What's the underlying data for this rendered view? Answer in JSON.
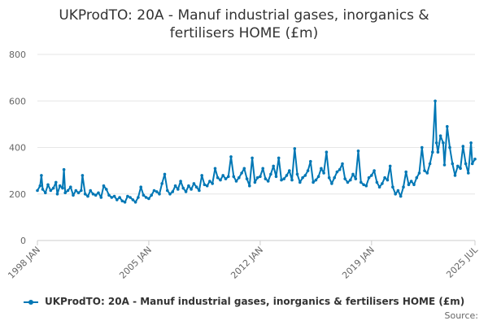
{
  "title_line1": "UKProdTO: 20A - Manuf industrial gases, inorganics &",
  "title_line2": "fertilisers HOME (£m)",
  "source_label": "Source:",
  "chart_data": {
    "type": "line",
    "xlim": [
      "1998-01",
      "2025-07"
    ],
    "ylim": [
      0,
      800
    ],
    "y_ticks": [
      0,
      200,
      400,
      600,
      800
    ],
    "x_ticks": [
      "1998-01",
      "2005-01",
      "2012-01",
      "2019-01",
      "2025-07"
    ],
    "x_tick_labels": [
      "1998 JAN",
      "2005 JAN",
      "2012 JAN",
      "2019 JAN",
      "2025 JUL"
    ],
    "grid": "horizontal",
    "legend_position": "bottom",
    "series_color": "#0077b5",
    "series": [
      {
        "name": "UKProdTO: 20A - Manuf industrial gases, inorganics & fertilisers HOME (£m)",
        "points": [
          [
            "1998-01",
            215
          ],
          [
            "1998-03",
            235
          ],
          [
            "1998-04",
            280
          ],
          [
            "1998-05",
            220
          ],
          [
            "1998-07",
            205
          ],
          [
            "1998-09",
            240
          ],
          [
            "1998-11",
            215
          ],
          [
            "1999-01",
            225
          ],
          [
            "1999-03",
            250
          ],
          [
            "1999-04",
            200
          ],
          [
            "1999-06",
            235
          ],
          [
            "1999-08",
            225
          ],
          [
            "1999-09",
            305
          ],
          [
            "1999-10",
            205
          ],
          [
            "1999-12",
            215
          ],
          [
            "2000-02",
            230
          ],
          [
            "2000-04",
            195
          ],
          [
            "2000-06",
            215
          ],
          [
            "2000-08",
            205
          ],
          [
            "2000-10",
            215
          ],
          [
            "2000-11",
            280
          ],
          [
            "2001-01",
            200
          ],
          [
            "2001-03",
            190
          ],
          [
            "2001-05",
            215
          ],
          [
            "2001-07",
            200
          ],
          [
            "2001-09",
            195
          ],
          [
            "2001-11",
            205
          ],
          [
            "2002-01",
            185
          ],
          [
            "2002-03",
            235
          ],
          [
            "2002-05",
            220
          ],
          [
            "2002-07",
            195
          ],
          [
            "2002-09",
            185
          ],
          [
            "2002-11",
            190
          ],
          [
            "2003-01",
            175
          ],
          [
            "2003-03",
            185
          ],
          [
            "2003-05",
            170
          ],
          [
            "2003-07",
            165
          ],
          [
            "2003-09",
            190
          ],
          [
            "2003-11",
            185
          ],
          [
            "2004-01",
            175
          ],
          [
            "2004-03",
            165
          ],
          [
            "2004-05",
            185
          ],
          [
            "2004-07",
            230
          ],
          [
            "2004-09",
            195
          ],
          [
            "2004-11",
            185
          ],
          [
            "2005-01",
            180
          ],
          [
            "2005-03",
            195
          ],
          [
            "2005-05",
            215
          ],
          [
            "2005-07",
            210
          ],
          [
            "2005-09",
            200
          ],
          [
            "2005-11",
            245
          ],
          [
            "2006-01",
            285
          ],
          [
            "2006-03",
            215
          ],
          [
            "2006-05",
            200
          ],
          [
            "2006-07",
            210
          ],
          [
            "2006-09",
            235
          ],
          [
            "2006-11",
            220
          ],
          [
            "2007-01",
            255
          ],
          [
            "2007-03",
            225
          ],
          [
            "2007-05",
            210
          ],
          [
            "2007-07",
            235
          ],
          [
            "2007-09",
            220
          ],
          [
            "2007-11",
            245
          ],
          [
            "2008-01",
            230
          ],
          [
            "2008-03",
            215
          ],
          [
            "2008-05",
            280
          ],
          [
            "2008-07",
            240
          ],
          [
            "2008-09",
            235
          ],
          [
            "2008-11",
            255
          ],
          [
            "2009-01",
            245
          ],
          [
            "2009-03",
            310
          ],
          [
            "2009-05",
            270
          ],
          [
            "2009-07",
            260
          ],
          [
            "2009-09",
            280
          ],
          [
            "2009-11",
            265
          ],
          [
            "2010-01",
            275
          ],
          [
            "2010-03",
            360
          ],
          [
            "2010-05",
            275
          ],
          [
            "2010-07",
            255
          ],
          [
            "2010-09",
            270
          ],
          [
            "2010-11",
            290
          ],
          [
            "2011-01",
            310
          ],
          [
            "2011-03",
            265
          ],
          [
            "2011-05",
            235
          ],
          [
            "2011-07",
            355
          ],
          [
            "2011-09",
            250
          ],
          [
            "2011-11",
            270
          ],
          [
            "2012-01",
            275
          ],
          [
            "2012-03",
            310
          ],
          [
            "2012-05",
            265
          ],
          [
            "2012-07",
            255
          ],
          [
            "2012-09",
            285
          ],
          [
            "2012-11",
            320
          ],
          [
            "2013-01",
            275
          ],
          [
            "2013-03",
            355
          ],
          [
            "2013-05",
            260
          ],
          [
            "2013-07",
            265
          ],
          [
            "2013-09",
            280
          ],
          [
            "2013-11",
            300
          ],
          [
            "2014-01",
            260
          ],
          [
            "2014-03",
            395
          ],
          [
            "2014-05",
            285
          ],
          [
            "2014-07",
            250
          ],
          [
            "2014-09",
            270
          ],
          [
            "2014-11",
            280
          ],
          [
            "2015-01",
            300
          ],
          [
            "2015-03",
            340
          ],
          [
            "2015-05",
            250
          ],
          [
            "2015-07",
            260
          ],
          [
            "2015-09",
            275
          ],
          [
            "2015-11",
            310
          ],
          [
            "2016-01",
            290
          ],
          [
            "2016-03",
            380
          ],
          [
            "2016-05",
            270
          ],
          [
            "2016-07",
            245
          ],
          [
            "2016-09",
            270
          ],
          [
            "2016-11",
            295
          ],
          [
            "2017-01",
            305
          ],
          [
            "2017-03",
            330
          ],
          [
            "2017-05",
            265
          ],
          [
            "2017-07",
            250
          ],
          [
            "2017-09",
            260
          ],
          [
            "2017-11",
            285
          ],
          [
            "2018-01",
            265
          ],
          [
            "2018-03",
            385
          ],
          [
            "2018-05",
            250
          ],
          [
            "2018-07",
            240
          ],
          [
            "2018-09",
            235
          ],
          [
            "2018-11",
            270
          ],
          [
            "2019-01",
            280
          ],
          [
            "2019-03",
            300
          ],
          [
            "2019-05",
            250
          ],
          [
            "2019-07",
            230
          ],
          [
            "2019-09",
            245
          ],
          [
            "2019-11",
            270
          ],
          [
            "2020-01",
            260
          ],
          [
            "2020-03",
            320
          ],
          [
            "2020-05",
            230
          ],
          [
            "2020-07",
            200
          ],
          [
            "2020-09",
            215
          ],
          [
            "2020-11",
            190
          ],
          [
            "2021-01",
            230
          ],
          [
            "2021-03",
            295
          ],
          [
            "2021-05",
            240
          ],
          [
            "2021-07",
            255
          ],
          [
            "2021-09",
            240
          ],
          [
            "2021-11",
            270
          ],
          [
            "2022-01",
            290
          ],
          [
            "2022-03",
            400
          ],
          [
            "2022-05",
            300
          ],
          [
            "2022-07",
            290
          ],
          [
            "2022-09",
            330
          ],
          [
            "2022-11",
            380
          ],
          [
            "2023-01",
            600
          ],
          [
            "2023-02",
            420
          ],
          [
            "2023-03",
            380
          ],
          [
            "2023-05",
            450
          ],
          [
            "2023-07",
            420
          ],
          [
            "2023-08",
            325
          ],
          [
            "2023-10",
            490
          ],
          [
            "2023-12",
            400
          ],
          [
            "2024-02",
            330
          ],
          [
            "2024-04",
            280
          ],
          [
            "2024-06",
            320
          ],
          [
            "2024-08",
            310
          ],
          [
            "2024-10",
            405
          ],
          [
            "2024-12",
            330
          ],
          [
            "2025-02",
            290
          ],
          [
            "2025-04",
            420
          ],
          [
            "2025-05",
            330
          ],
          [
            "2025-07",
            350
          ]
        ]
      }
    ]
  }
}
